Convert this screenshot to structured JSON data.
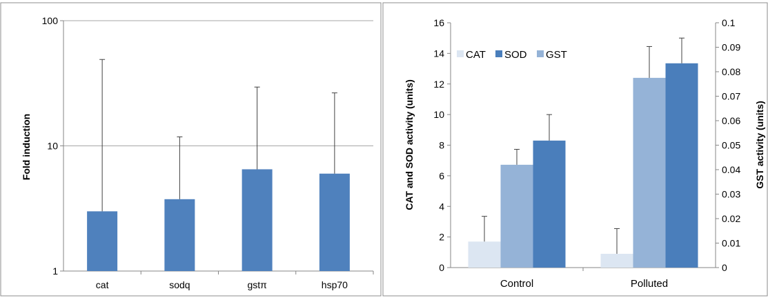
{
  "chart_data": [
    {
      "type": "bar",
      "scale": "log",
      "ylabel": "Fold induction",
      "xlabel": "",
      "ylim": [
        1,
        100
      ],
      "y_ticks": [
        "1",
        "10",
        "100"
      ],
      "grid": true,
      "categories": [
        "cat",
        "sodq",
        "gstπ",
        "hsp70"
      ],
      "values": [
        3.0,
        3.75,
        6.5,
        6.0
      ],
      "error_upper": [
        49,
        11.8,
        29.5,
        26.5
      ],
      "bar_color": "#4f81bd"
    },
    {
      "type": "bar",
      "categories": [
        "Control",
        "Polluted"
      ],
      "ylabel": "CAT and SOD activity (units)",
      "y2label": "GST activity (units)",
      "ylim": [
        0,
        16
      ],
      "y2lim": [
        0,
        0.1
      ],
      "y_ticks": [
        "0",
        "2",
        "4",
        "6",
        "8",
        "10",
        "12",
        "14",
        "16"
      ],
      "y2_ticks": [
        "0",
        "0.01",
        "0.02",
        "0.03",
        "0.04",
        "0.05",
        "0.06",
        "0.07",
        "0.08",
        "0.09",
        "0.1"
      ],
      "grid": false,
      "legend_position": "top-left",
      "legend": [
        "CAT",
        "SOD",
        "GST"
      ],
      "series": [
        {
          "name": "CAT",
          "axis": "left",
          "color": "#dce6f2",
          "values": [
            1.7,
            0.9
          ],
          "error_upper": [
            3.35,
            2.55
          ]
        },
        {
          "name": "GST",
          "axis": "right",
          "color": "#95b3d7",
          "values": [
            0.042,
            0.0775
          ],
          "error_upper": [
            0.0483,
            0.0903
          ]
        },
        {
          "name": "SOD",
          "axis": "left",
          "color": "#4a7ebb",
          "values": [
            8.3,
            13.35
          ],
          "error_upper": [
            10.0,
            15.0
          ]
        }
      ]
    }
  ]
}
